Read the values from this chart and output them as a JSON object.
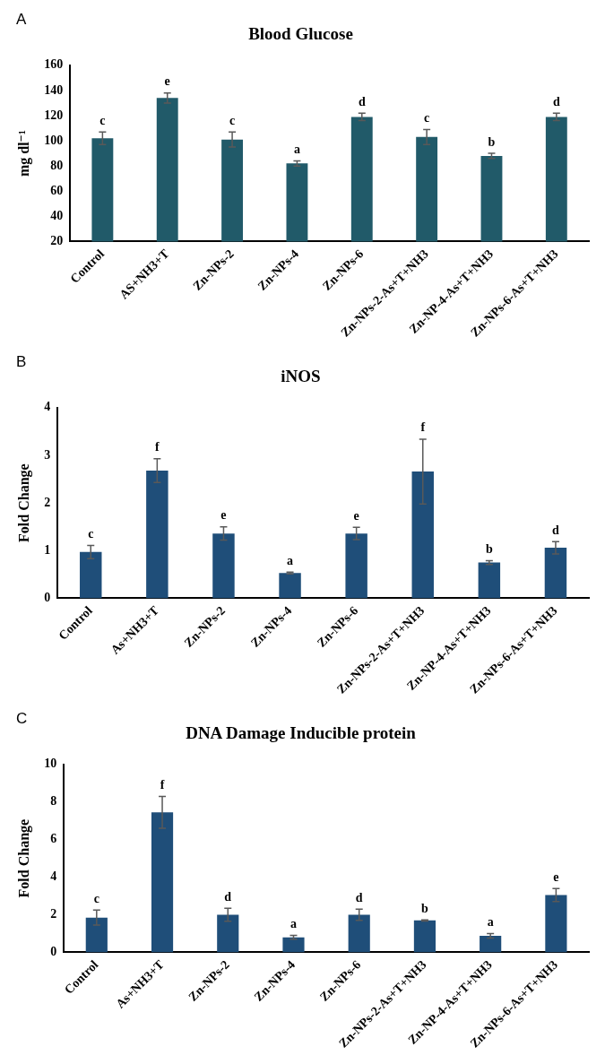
{
  "chart_data": [
    {
      "type": "bar",
      "title": "Blood Glucose",
      "ylabel": "mg dl⁻¹",
      "categories": [
        "Control",
        "AS+NH3+T",
        "Zn-NPs-2",
        "Zn-NPs-4",
        "Zn-NPs-6",
        "Zn-NPs-2-As+T+NH3",
        "Zn-NP-4-As+T+NH3",
        "Zn-NPs-6-As+T+NH3"
      ],
      "values": [
        102,
        134,
        101,
        82,
        119,
        103,
        88,
        119
      ],
      "errors": [
        5,
        4,
        6,
        2,
        3,
        6,
        2,
        3
      ],
      "color": "#215a69",
      "ylim": [
        20,
        160
      ],
      "yticks": [
        20,
        40,
        60,
        80,
        100,
        120,
        140,
        160
      ],
      "grid": false,
      "annotations": [
        "A",
        {
          "text": "c",
          "x": "Control",
          "y": 107
        },
        {
          "text": "e",
          "x": "AS+NH3+T",
          "y": 138
        },
        {
          "text": "c",
          "x": "Zn-NPs-2",
          "y": 107
        },
        {
          "text": "a",
          "x": "Zn-NPs-4",
          "y": 84
        },
        {
          "text": "d",
          "x": "Zn-NPs-6",
          "y": 122
        },
        {
          "text": "c",
          "x": "Zn-NPs-2-As+T+NH3",
          "y": 109
        },
        {
          "text": "b",
          "x": "Zn-NP-4-As+T+NH3",
          "y": 90
        },
        {
          "text": "d",
          "x": "Zn-NPs-6-As+T+NH3",
          "y": 122
        }
      ]
    },
    {
      "type": "bar",
      "title": "iNOS",
      "ylabel": "Fold Change",
      "categories": [
        "Control",
        "As+NH3+T",
        "Zn-NPs-2",
        "Zn-NPs-4",
        "Zn-NPs-6",
        "Zn-NPs-2-As+T+NH3",
        "Zn-NP-4-As+T+NH3",
        "Zn-NPs-6-As+T+NH3"
      ],
      "values": [
        0.97,
        2.68,
        1.36,
        0.53,
        1.36,
        2.66,
        0.75,
        1.06
      ],
      "errors": [
        0.14,
        0.25,
        0.14,
        0.02,
        0.13,
        0.68,
        0.04,
        0.13
      ],
      "color": "#1f4e79",
      "ylim": [
        0,
        4
      ],
      "yticks": [
        0,
        1,
        2,
        3,
        4
      ],
      "grid": false,
      "annotations": [
        "B",
        {
          "text": "c",
          "x": "Control",
          "y": 1.11
        },
        {
          "text": "f",
          "x": "As+NH3+T",
          "y": 2.93
        },
        {
          "text": "e",
          "x": "Zn-NPs-2",
          "y": 1.5
        },
        {
          "text": "a",
          "x": "Zn-NPs-4",
          "y": 0.55
        },
        {
          "text": "e",
          "x": "Zn-NPs-6",
          "y": 1.49
        },
        {
          "text": "f",
          "x": "Zn-NPs-2-As+T+NH3",
          "y": 3.34
        },
        {
          "text": "b",
          "x": "Zn-NP-4-As+T+NH3",
          "y": 0.79
        },
        {
          "text": "d",
          "x": "Zn-NPs-6-As+T+NH3",
          "y": 1.19
        }
      ]
    },
    {
      "type": "bar",
      "title": "DNA Damage Inducible protein",
      "ylabel": "Fold Change",
      "categories": [
        "Control",
        "As+NH3+T",
        "Zn-NPs-2",
        "Zn-NPs-4",
        "Zn-NPs-6",
        "Zn-NPs-2-As+T+NH3",
        "Zn-NP-4-As+T+NH3",
        "Zn-NPs-6-As+T+NH3"
      ],
      "values": [
        1.85,
        7.45,
        2.0,
        0.8,
        2.0,
        1.7,
        0.88,
        3.05
      ],
      "errors": [
        0.4,
        0.85,
        0.35,
        0.1,
        0.3,
        0.03,
        0.12,
        0.35
      ],
      "color": "#1f4e79",
      "ylim": [
        0,
        10
      ],
      "yticks": [
        0,
        2,
        4,
        6,
        8,
        10
      ],
      "grid": false,
      "annotations": [
        "C",
        {
          "text": "c",
          "x": "Control",
          "y": 2.25
        },
        {
          "text": "f",
          "x": "As+NH3+T",
          "y": 8.3
        },
        {
          "text": "d",
          "x": "Zn-NPs-2",
          "y": 2.35
        },
        {
          "text": "a",
          "x": "Zn-NPs-4",
          "y": 0.9
        },
        {
          "text": "d",
          "x": "Zn-NPs-6",
          "y": 2.3
        },
        {
          "text": "b",
          "x": "Zn-NPs-2-As+T+NH3",
          "y": 1.73
        },
        {
          "text": "a",
          "x": "Zn-NP-4-As+T+NH3",
          "y": 1.0
        },
        {
          "text": "e",
          "x": "Zn-NPs-6-As+T+NH3",
          "y": 3.4
        }
      ]
    }
  ]
}
